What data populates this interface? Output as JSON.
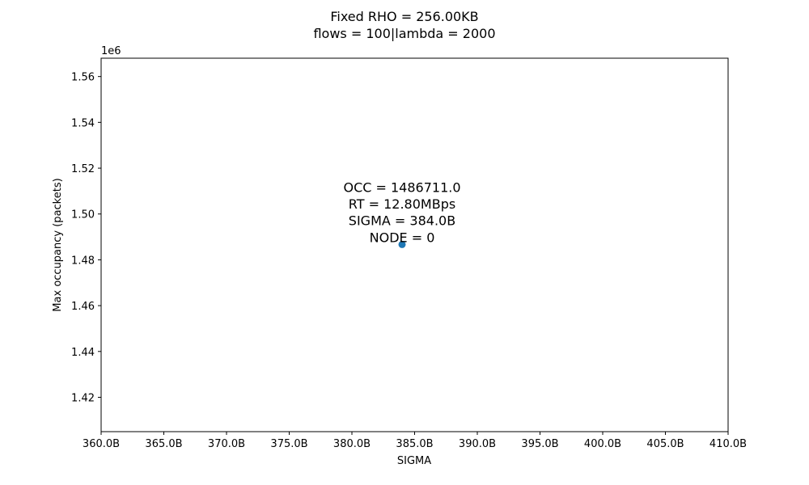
{
  "chart_data": {
    "type": "scatter",
    "title_lines": [
      "Fixed RHO = 256.00KB",
      "flows = 100|lambda = 2000"
    ],
    "xlabel": "SIGMA",
    "ylabel": "Max occupancy (packets)",
    "y_offset_label": "1e6",
    "xlim": [
      360,
      410
    ],
    "ylim": [
      1405000,
      1568000
    ],
    "x_ticks": [
      {
        "value": 360,
        "label": "360.0B"
      },
      {
        "value": 365,
        "label": "365.0B"
      },
      {
        "value": 370,
        "label": "370.0B"
      },
      {
        "value": 375,
        "label": "375.0B"
      },
      {
        "value": 380,
        "label": "380.0B"
      },
      {
        "value": 385,
        "label": "385.0B"
      },
      {
        "value": 390,
        "label": "390.0B"
      },
      {
        "value": 395,
        "label": "395.0B"
      },
      {
        "value": 400,
        "label": "400.0B"
      },
      {
        "value": 405,
        "label": "405.0B"
      },
      {
        "value": 410,
        "label": "410.0B"
      }
    ],
    "y_ticks": [
      {
        "value": 1420000,
        "label": "1.42"
      },
      {
        "value": 1440000,
        "label": "1.44"
      },
      {
        "value": 1460000,
        "label": "1.46"
      },
      {
        "value": 1480000,
        "label": "1.48"
      },
      {
        "value": 1500000,
        "label": "1.50"
      },
      {
        "value": 1520000,
        "label": "1.52"
      },
      {
        "value": 1540000,
        "label": "1.54"
      },
      {
        "value": 1560000,
        "label": "1.56"
      }
    ],
    "points": [
      {
        "x": 384,
        "y": 1486711
      }
    ],
    "annotation_lines": [
      "OCC = 1486711.0",
      "RT = 12.80MBps",
      "SIGMA = 384.0B",
      "NODE = 0"
    ],
    "marker_color": "#1f77b4",
    "grid": false
  }
}
